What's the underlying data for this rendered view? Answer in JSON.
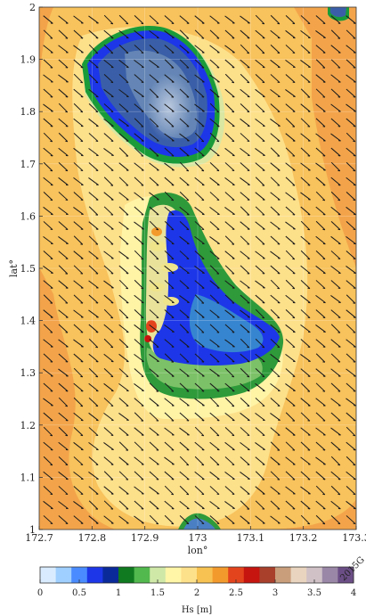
{
  "map": {
    "xlabel": "lon°",
    "ylabel": "lat°",
    "lon_range": [
      172.7,
      173.3
    ],
    "lat_range": [
      1.0,
      2.0
    ],
    "lon_ticks": [
      "172.7",
      "172.8",
      "172.9",
      "173",
      "173.1",
      "173.2",
      "173.3"
    ],
    "lat_ticks": [
      "1",
      "1.1",
      "1.2",
      "1.3",
      "1.4",
      "1.5",
      "1.6",
      "1.7",
      "1.8",
      "1.9",
      "2"
    ],
    "wave_direction": "towards south-east (arrows point down-right)",
    "islands": [
      "northern atoll (lagoon)",
      "central atoll (lagoon)",
      "southern atoll tip"
    ]
  },
  "colorbar": {
    "title": "Hs [m]",
    "range": [
      0,
      4
    ],
    "tick_labels": [
      "0",
      "0.5",
      "1",
      "1.5",
      "2",
      "2.5",
      "3",
      "3.5",
      "4"
    ],
    "colors": [
      "#d9ecff",
      "#9fcfff",
      "#4a8cff",
      "#1c36e8",
      "#0a2a9a",
      "#0f7a1f",
      "#52b94e",
      "#cfe8a8",
      "#fff6a8",
      "#fde08a",
      "#f7c251",
      "#f39a2d",
      "#e4441d",
      "#c6140e",
      "#a8402c",
      "#c99e7b",
      "#e9d5bf",
      "#cfc1c6",
      "#9a86a6",
      "#6b4e86"
    ],
    "watermark": "2015G"
  }
}
